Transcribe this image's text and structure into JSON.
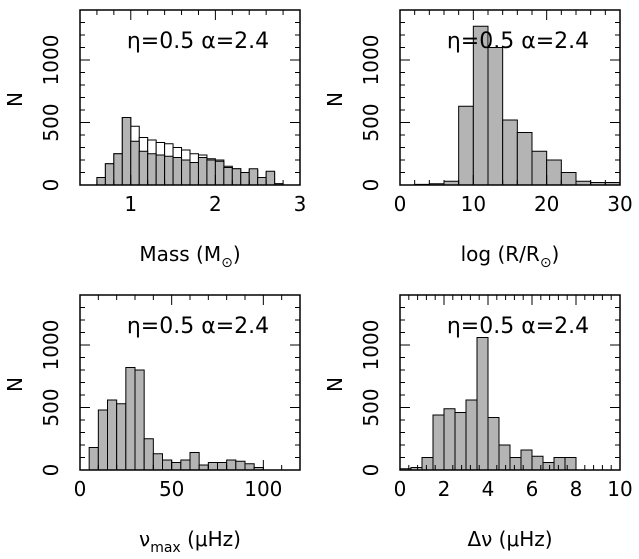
{
  "chart_data": [
    {
      "type": "bar",
      "annotation": "η=0.5  α=2.4",
      "xlabel": "Mass (M⊙)",
      "ylabel": "N",
      "xlim": [
        0.4,
        3.0
      ],
      "ylim": [
        0,
        1400
      ],
      "xticks": [
        1,
        2,
        3
      ],
      "xtick_labels": [
        "1",
        "2",
        "3"
      ],
      "yticks": [
        0,
        500,
        1000
      ],
      "ytick_labels": [
        "0",
        "500",
        "1000"
      ],
      "bin_width": 0.1,
      "x": [
        0.6,
        0.7,
        0.8,
        0.9,
        1.0,
        1.1,
        1.2,
        1.3,
        1.4,
        1.5,
        1.6,
        1.7,
        1.8,
        1.9,
        2.0,
        2.1,
        2.2,
        2.3,
        2.4,
        2.5,
        2.6,
        2.7
      ],
      "series": [
        {
          "style": "filled",
          "values": [
            60,
            170,
            250,
            540,
            350,
            270,
            250,
            240,
            230,
            220,
            200,
            180,
            220,
            200,
            190,
            140,
            130,
            100,
            130,
            60,
            110,
            10
          ]
        },
        {
          "style": "open",
          "values": [
            60,
            170,
            250,
            540,
            470,
            380,
            360,
            340,
            330,
            300,
            280,
            250,
            240,
            210,
            200,
            150,
            130,
            100,
            120,
            60,
            100,
            10
          ]
        }
      ]
    },
    {
      "type": "bar",
      "annotation": "η=0.5  α=2.4",
      "xlabel": "log (R/R⊙)",
      "ylabel": "N",
      "xlim": [
        0,
        30
      ],
      "ylim": [
        0,
        1400
      ],
      "xticks": [
        0,
        10,
        20,
        30
      ],
      "xtick_labels": [
        "0",
        "10",
        "20",
        "30"
      ],
      "yticks": [
        0,
        500,
        1000
      ],
      "ytick_labels": [
        "0",
        "500",
        "1000"
      ],
      "bin_width": 2,
      "x": [
        0,
        2,
        4,
        6,
        8,
        10,
        12,
        14,
        16,
        18,
        20,
        22,
        24,
        26,
        28
      ],
      "series": [
        {
          "style": "filled",
          "values": [
            0,
            5,
            10,
            30,
            630,
            1270,
            1100,
            520,
            420,
            270,
            200,
            100,
            30,
            20,
            20
          ]
        }
      ]
    },
    {
      "type": "bar",
      "annotation": "η=0.5  α=2.4",
      "xlabel": "νmax (μHz)",
      "ylabel": "N",
      "xlim": [
        0,
        120
      ],
      "ylim": [
        0,
        1400
      ],
      "xticks": [
        0,
        50,
        100
      ],
      "xtick_labels": [
        "0",
        "50",
        "100"
      ],
      "yticks": [
        0,
        500,
        1000
      ],
      "ytick_labels": [
        "0",
        "500",
        "1000"
      ],
      "bin_width": 5,
      "x": [
        0,
        5,
        10,
        15,
        20,
        25,
        30,
        35,
        40,
        45,
        50,
        55,
        60,
        65,
        70,
        75,
        80,
        85,
        90,
        95,
        100,
        105,
        110
      ],
      "series": [
        {
          "style": "filled",
          "values": [
            0,
            180,
            480,
            560,
            530,
            820,
            800,
            250,
            130,
            80,
            60,
            80,
            140,
            40,
            60,
            60,
            80,
            70,
            50,
            20,
            0,
            0,
            0
          ]
        }
      ]
    },
    {
      "type": "bar",
      "annotation": "η=0.5  α=2.4",
      "xlabel": "Δν (μHz)",
      "ylabel": "N",
      "xlim": [
        0,
        10
      ],
      "ylim": [
        0,
        1400
      ],
      "xticks": [
        0,
        2,
        4,
        6,
        8,
        10
      ],
      "xtick_labels": [
        "0",
        "2",
        "4",
        "6",
        "8",
        "10"
      ],
      "yticks": [
        0,
        500,
        1000
      ],
      "ytick_labels": [
        "0",
        "500",
        "1000"
      ],
      "bin_width": 0.5,
      "x": [
        0,
        0.5,
        1.0,
        1.5,
        2.0,
        2.5,
        3.0,
        3.5,
        4.0,
        4.5,
        5.0,
        5.5,
        6.0,
        6.5,
        7.0,
        7.5,
        8.0,
        8.5,
        9.0,
        9.5
      ],
      "series": [
        {
          "style": "filled",
          "values": [
            10,
            20,
            100,
            440,
            490,
            460,
            560,
            1060,
            420,
            200,
            100,
            160,
            110,
            60,
            100,
            100,
            0,
            0,
            0,
            0
          ]
        }
      ]
    }
  ],
  "xlabels_rich": [
    {
      "main": "Mass (M",
      "sub": "⊙",
      "end": ")"
    },
    {
      "main": "log (R/R",
      "sub": "⊙",
      "end": ")"
    },
    {
      "main": "ν",
      "sub": "max",
      "end": " (μHz)"
    },
    {
      "main": "Δν (μHz)",
      "sub": "",
      "end": ""
    }
  ]
}
